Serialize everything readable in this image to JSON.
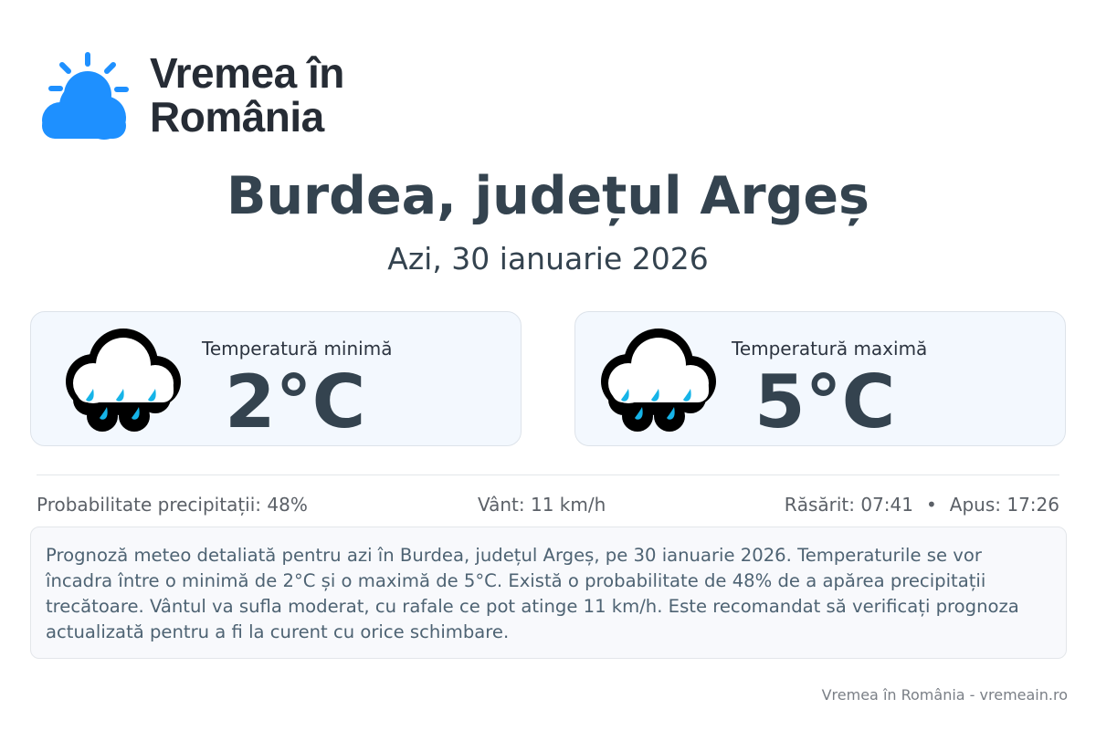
{
  "logo": {
    "line1": "Vremea în",
    "line2": "România",
    "icon": "sun-cloud-icon",
    "color": "#1e90ff"
  },
  "header": {
    "title": "Burdea, județul Argeș",
    "date": "Azi, 30 ianuarie 2026"
  },
  "cards": [
    {
      "label": "Temperatură minimă",
      "value": "2°C",
      "icon": "rain-cloud-icon"
    },
    {
      "label": "Temperatură maximă",
      "value": "5°C",
      "icon": "rain-cloud-icon"
    }
  ],
  "stats": {
    "precipitation": "Probabilitate precipitații: 48%",
    "wind": "Vânt: 11 km/h",
    "sunrise": "Răsărit: 07:41",
    "separator": "•",
    "sunset": "Apus: 17:26"
  },
  "description": "Prognoză meteo detaliată pentru azi în Burdea, județul Argeș, pe 30 ianuarie 2026. Temperaturile se vor încadra între o minimă de 2°C și o maximă de 5°C. Există o probabilitate de 48% de a apărea precipitații trecătoare. Vântul va sufla moderat, cu rafale ce pot atinge 11 km/h. Este recomandat să verificați prognoza actualizată pentru a fi la curent cu orice schimbare.",
  "footer": "Vremea în România - vremeain.ro"
}
